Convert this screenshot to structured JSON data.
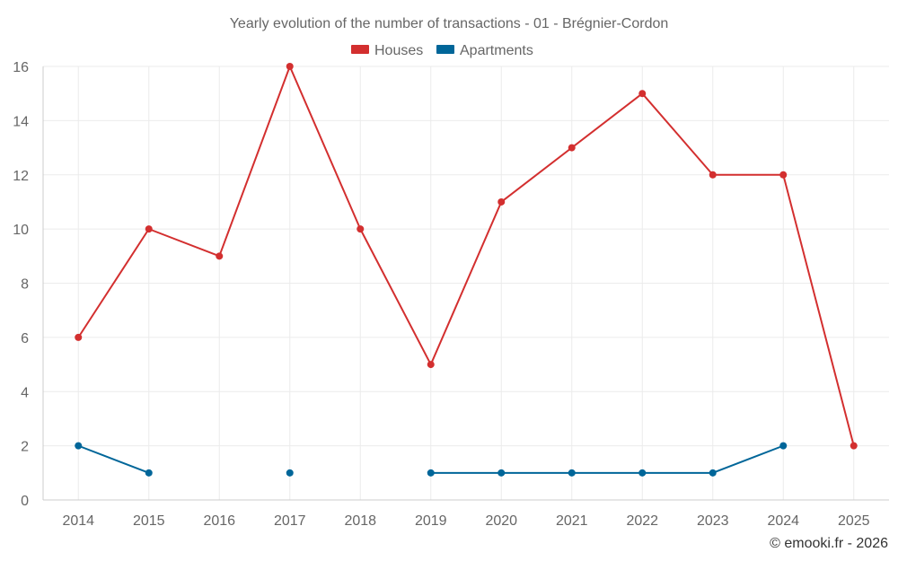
{
  "chart_data": {
    "type": "line",
    "title": "Yearly evolution of the number of transactions - 01 - Brégnier-Cordon",
    "categories": [
      "2014",
      "2015",
      "2016",
      "2017",
      "2018",
      "2019",
      "2020",
      "2021",
      "2022",
      "2023",
      "2024",
      "2025"
    ],
    "ylim": [
      0,
      16
    ],
    "yticks": [
      0,
      2,
      4,
      6,
      8,
      10,
      12,
      14,
      16
    ],
    "grid": true,
    "legend_position": "top-center",
    "series": [
      {
        "name": "Houses",
        "color": "#d32f2f",
        "values": [
          6,
          10,
          9,
          16,
          10,
          5,
          11,
          13,
          15,
          12,
          12,
          2
        ]
      },
      {
        "name": "Apartments",
        "color": "#006699",
        "values": [
          2,
          1,
          null,
          1,
          null,
          1,
          1,
          1,
          1,
          1,
          2,
          null
        ]
      }
    ],
    "credit": "© emooki.fr - 2026"
  }
}
